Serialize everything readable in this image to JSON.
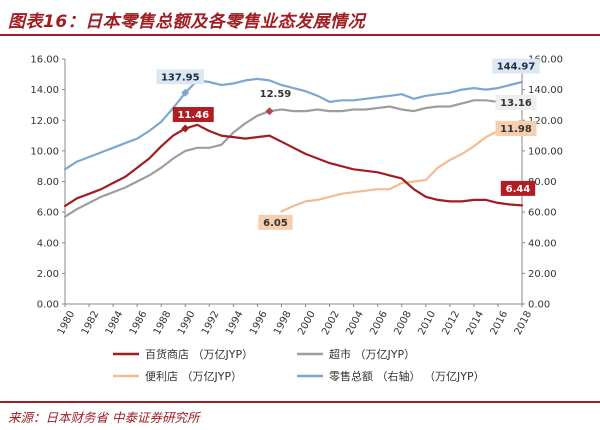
{
  "title": "图表16：日本零售总额及各零售业态发展情况",
  "source": "来源：日本财务省  中泰证券研究所",
  "chart_data": {
    "type": "line",
    "x": [
      1980,
      1981,
      1982,
      1983,
      1984,
      1985,
      1986,
      1987,
      1988,
      1989,
      1990,
      1991,
      1992,
      1993,
      1994,
      1995,
      1996,
      1997,
      1998,
      1999,
      2000,
      2001,
      2002,
      2003,
      2004,
      2005,
      2006,
      2007,
      2008,
      2009,
      2010,
      2011,
      2012,
      2013,
      2014,
      2015,
      2016,
      2017,
      2018
    ],
    "x_ticks": [
      "1980",
      "1982",
      "1984",
      "1986",
      "1988",
      "1990",
      "1992",
      "1994",
      "1996",
      "1998",
      "2000",
      "2002",
      "2004",
      "2006",
      "2008",
      "2010",
      "2012",
      "2014",
      "2016",
      "2018"
    ],
    "y_left_ticks": [
      "0.00",
      "2.00",
      "4.00",
      "6.00",
      "8.00",
      "10.00",
      "12.00",
      "14.00",
      "16.00"
    ],
    "y_right_ticks": [
      "0.00",
      "20.00",
      "40.00",
      "60.00",
      "80.00",
      "100.00",
      "120.00",
      "140.00",
      "160.00"
    ],
    "ylim_left": [
      0,
      16
    ],
    "ylim_right": [
      0,
      160
    ],
    "grid": false,
    "legend_position": "bottom",
    "series": [
      {
        "name": "百货商店（万亿JYP）",
        "axis": "left",
        "color": "#a01d22",
        "values": [
          6.4,
          6.9,
          7.2,
          7.5,
          7.9,
          8.3,
          8.9,
          9.5,
          10.3,
          11.0,
          11.46,
          11.7,
          11.3,
          11.0,
          10.9,
          10.8,
          10.9,
          11.0,
          10.6,
          10.2,
          9.8,
          9.5,
          9.2,
          9.0,
          8.8,
          8.7,
          8.6,
          8.4,
          8.2,
          7.5,
          7.0,
          6.8,
          6.7,
          6.7,
          6.8,
          6.8,
          6.6,
          6.5,
          6.44
        ]
      },
      {
        "name": "超市（万亿JYP）",
        "axis": "left",
        "color": "#9e9e9e",
        "values": [
          5.7,
          6.2,
          6.6,
          7.0,
          7.3,
          7.6,
          8.0,
          8.4,
          8.9,
          9.5,
          10.0,
          10.2,
          10.2,
          10.4,
          11.2,
          11.8,
          12.3,
          12.59,
          12.7,
          12.6,
          12.6,
          12.7,
          12.6,
          12.6,
          12.7,
          12.7,
          12.8,
          12.9,
          12.7,
          12.6,
          12.8,
          12.9,
          12.9,
          13.1,
          13.3,
          13.3,
          13.2,
          13.1,
          13.16
        ]
      },
      {
        "name": "便利店（万亿JYP）",
        "axis": "left",
        "color": "#f2bc92",
        "values": [
          null,
          null,
          null,
          null,
          null,
          null,
          null,
          null,
          null,
          null,
          null,
          null,
          null,
          null,
          null,
          null,
          null,
          null,
          6.05,
          6.4,
          6.7,
          6.8,
          7.0,
          7.2,
          7.3,
          7.4,
          7.5,
          7.5,
          7.9,
          8.0,
          8.1,
          8.9,
          9.4,
          9.8,
          10.3,
          10.9,
          11.3,
          11.7,
          11.98
        ]
      },
      {
        "name": "零售总额（右轴）（万亿JYP）",
        "axis": "right",
        "color": "#7ea6d0",
        "values": [
          88,
          93,
          96,
          99,
          102,
          105,
          108,
          113,
          119,
          128,
          137.95,
          146,
          145,
          143,
          144,
          146,
          147,
          146,
          143,
          141,
          139,
          136,
          132,
          133,
          133,
          134,
          135,
          136,
          137,
          134,
          136,
          137,
          138,
          140,
          141,
          140,
          141,
          143,
          144.97
        ]
      }
    ],
    "annotations": [
      {
        "text": "137.95",
        "series": "零售总额（右轴）（万亿JYP）",
        "x": 1990,
        "value": 137.95
      },
      {
        "text": "11.46",
        "series": "百货商店（万亿JYP）",
        "x": 1990,
        "value": 11.46
      },
      {
        "text": "12.59",
        "series": "超市（万亿JYP）",
        "x": 1997,
        "value": 12.59
      },
      {
        "text": "144.97",
        "series": "零售总额（右轴）（万亿JYP）",
        "x": 2018,
        "value": 144.97
      },
      {
        "text": "13.16",
        "series": "超市（万亿JYP）",
        "x": 2018,
        "value": 13.16
      },
      {
        "text": "11.98",
        "series": "便利店（万亿JYP）",
        "x": 2018,
        "value": 11.98
      },
      {
        "text": "6.05",
        "series": "便利店（万亿JYP）",
        "x": 1998,
        "value": 6.05
      },
      {
        "text": "6.44",
        "series": "百货商店（万亿JYP）",
        "x": 2018,
        "value": 6.44
      }
    ],
    "legend": [
      {
        "label": "百货商店 （万亿JYP）",
        "color": "#a01d22"
      },
      {
        "label": "超市 （万亿JYP）",
        "color": "#9e9e9e"
      },
      {
        "label": "便利店 （万亿JYP）",
        "color": "#f2bc92"
      },
      {
        "label": "零售总额 （右轴）   （万亿JYP）",
        "color": "#7ea6d0"
      }
    ]
  }
}
